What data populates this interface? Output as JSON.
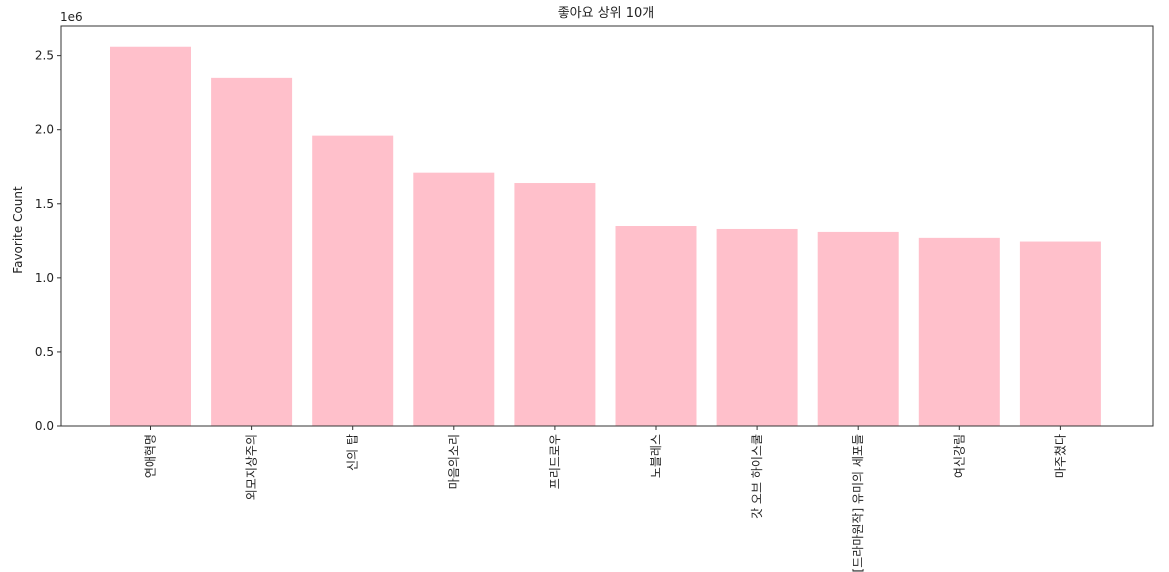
{
  "chart_data": {
    "type": "bar",
    "title": "좋아요 상위 10개",
    "xlabel": "",
    "ylabel": "Favorite Count",
    "offset_text": "1e6",
    "categories": [
      "연애혁명",
      "외모지상주의",
      "신의 탑",
      "마음의소리",
      "프리드로우",
      "노블레스",
      "갓 오브 하이스쿨",
      "[드라마원작] 유미의 세포들",
      "여신강림",
      "마주쳤다"
    ],
    "values": [
      2.56,
      2.35,
      1.96,
      1.71,
      1.64,
      1.35,
      1.33,
      1.31,
      1.27,
      1.245
    ],
    "value_scale": 1000000,
    "ylim": [
      0,
      2.7
    ],
    "yticks": [
      "0.0",
      "0.5",
      "1.0",
      "1.5",
      "2.0",
      "2.5"
    ],
    "bar_color": "#ffc0cb",
    "grid": false
  }
}
